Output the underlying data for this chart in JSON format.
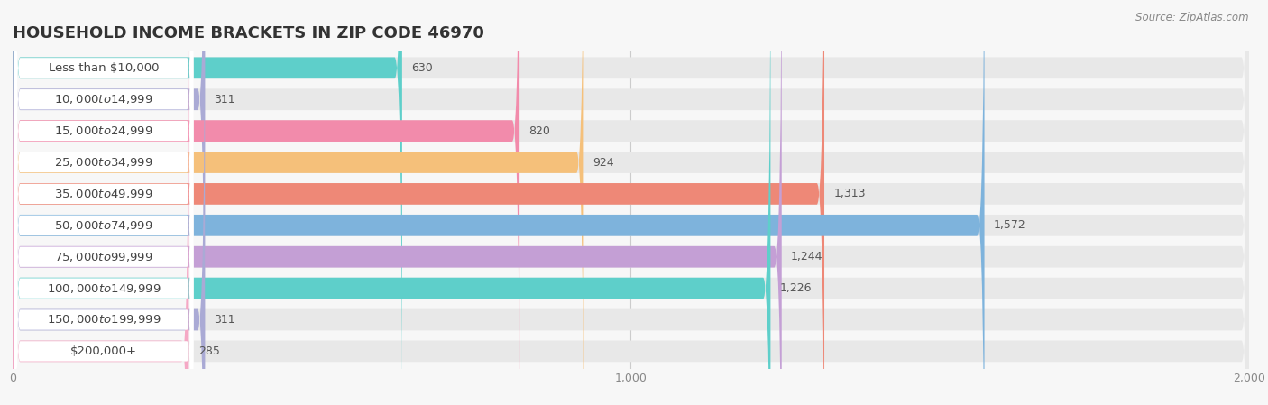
{
  "title": "HOUSEHOLD INCOME BRACKETS IN ZIP CODE 46970",
  "source": "Source: ZipAtlas.com",
  "categories": [
    "Less than $10,000",
    "$10,000 to $14,999",
    "$15,000 to $24,999",
    "$25,000 to $34,999",
    "$35,000 to $49,999",
    "$50,000 to $74,999",
    "$75,000 to $99,999",
    "$100,000 to $149,999",
    "$150,000 to $199,999",
    "$200,000+"
  ],
  "values": [
    630,
    311,
    820,
    924,
    1313,
    1572,
    1244,
    1226,
    311,
    285
  ],
  "bar_colors": [
    "#5ECFCA",
    "#AAAAD5",
    "#F28BAB",
    "#F5C07A",
    "#EE8877",
    "#7EB3DC",
    "#C49FD5",
    "#5ECFCA",
    "#AAAAD5",
    "#F5A8C5"
  ],
  "xlim": [
    0,
    2000
  ],
  "xticks": [
    0,
    1000,
    2000
  ],
  "bg_color": "#f7f7f7",
  "bar_bg_color": "#e8e8e8",
  "label_bg_color": "#ffffff",
  "label_fontsize": 9.5,
  "value_fontsize": 9,
  "title_fontsize": 13,
  "source_fontsize": 8.5
}
